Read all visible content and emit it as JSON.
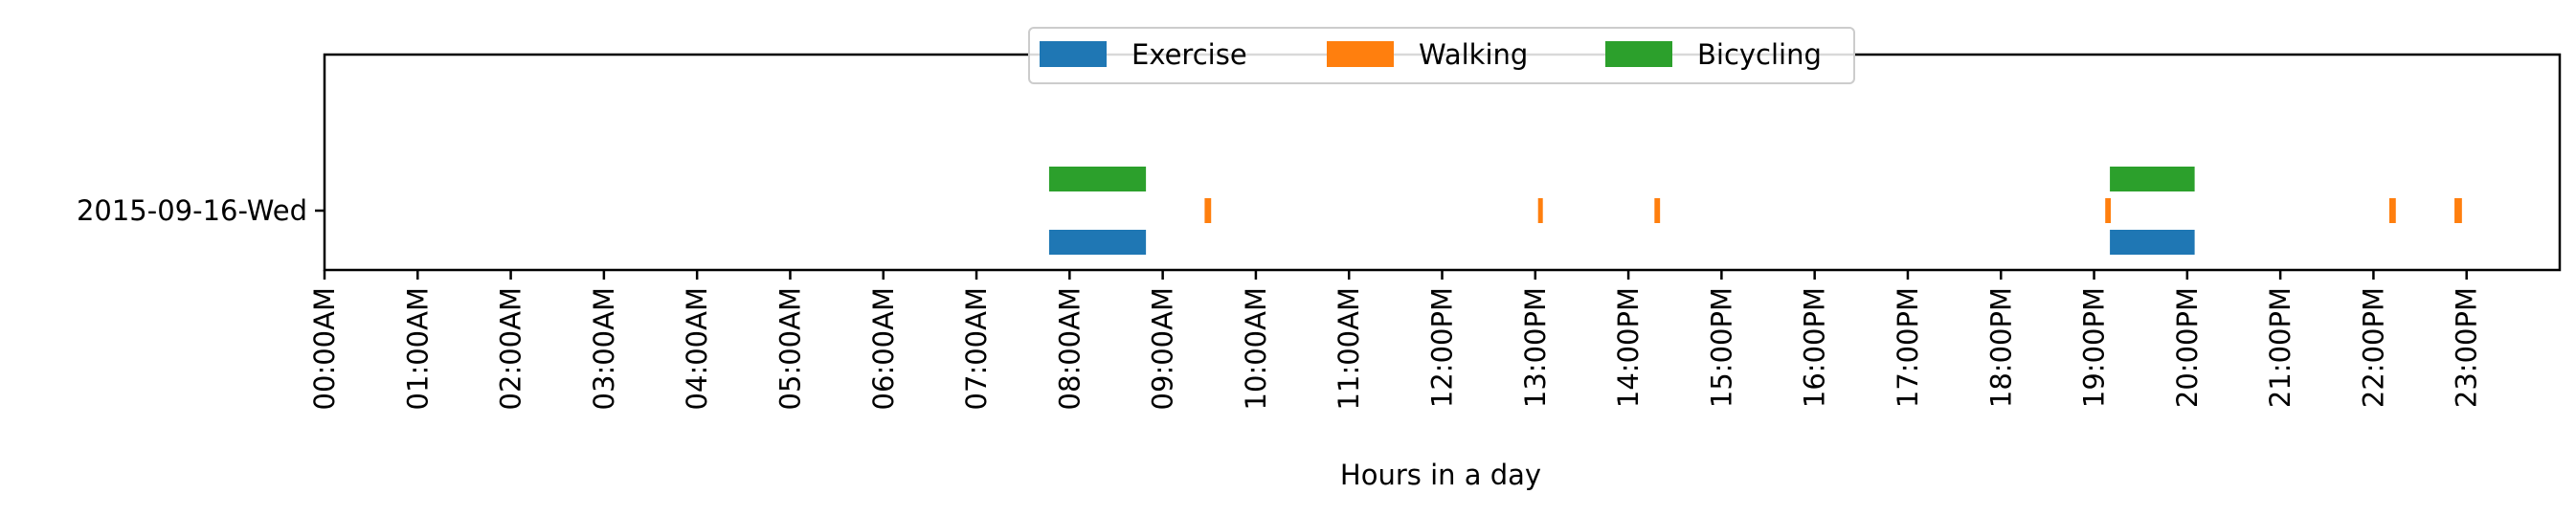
{
  "chart_data": {
    "type": "bar",
    "orientation": "horizontal-timeline",
    "xlabel": "Hours in a day",
    "xlim": [
      0,
      24
    ],
    "x_tick_values": [
      0,
      1,
      2,
      3,
      4,
      5,
      6,
      7,
      8,
      9,
      10,
      11,
      12,
      13,
      14,
      15,
      16,
      17,
      18,
      19,
      20,
      21,
      22,
      23
    ],
    "x_tick_labels": [
      "00:00AM",
      "01:00AM",
      "02:00AM",
      "03:00AM",
      "04:00AM",
      "05:00AM",
      "06:00AM",
      "07:00AM",
      "08:00AM",
      "09:00AM",
      "10:00AM",
      "11:00AM",
      "12:00PM",
      "13:00PM",
      "14:00PM",
      "15:00PM",
      "16:00PM",
      "17:00PM",
      "18:00PM",
      "19:00PM",
      "20:00PM",
      "21:00PM",
      "22:00PM",
      "23:00PM"
    ],
    "categories": [
      "2015-09-16-Wed"
    ],
    "legend_position": "top-center",
    "grid": false,
    "series": [
      {
        "name": "Exercise",
        "color": "#1f77b4",
        "offset": -1,
        "intervals": [
          [
            7.78,
            8.82
          ],
          [
            19.17,
            20.08
          ]
        ]
      },
      {
        "name": "Walking",
        "color": "#ff7f0e",
        "offset": 0,
        "intervals": [
          [
            9.45,
            9.52
          ],
          [
            13.03,
            13.06
          ],
          [
            14.28,
            14.34
          ],
          [
            19.12,
            19.18
          ],
          [
            22.17,
            22.24
          ],
          [
            22.87,
            22.95
          ]
        ]
      },
      {
        "name": "Bicycling",
        "color": "#2ca02c",
        "offset": 1,
        "intervals": [
          [
            7.78,
            8.82
          ],
          [
            19.17,
            20.08
          ]
        ]
      }
    ]
  }
}
